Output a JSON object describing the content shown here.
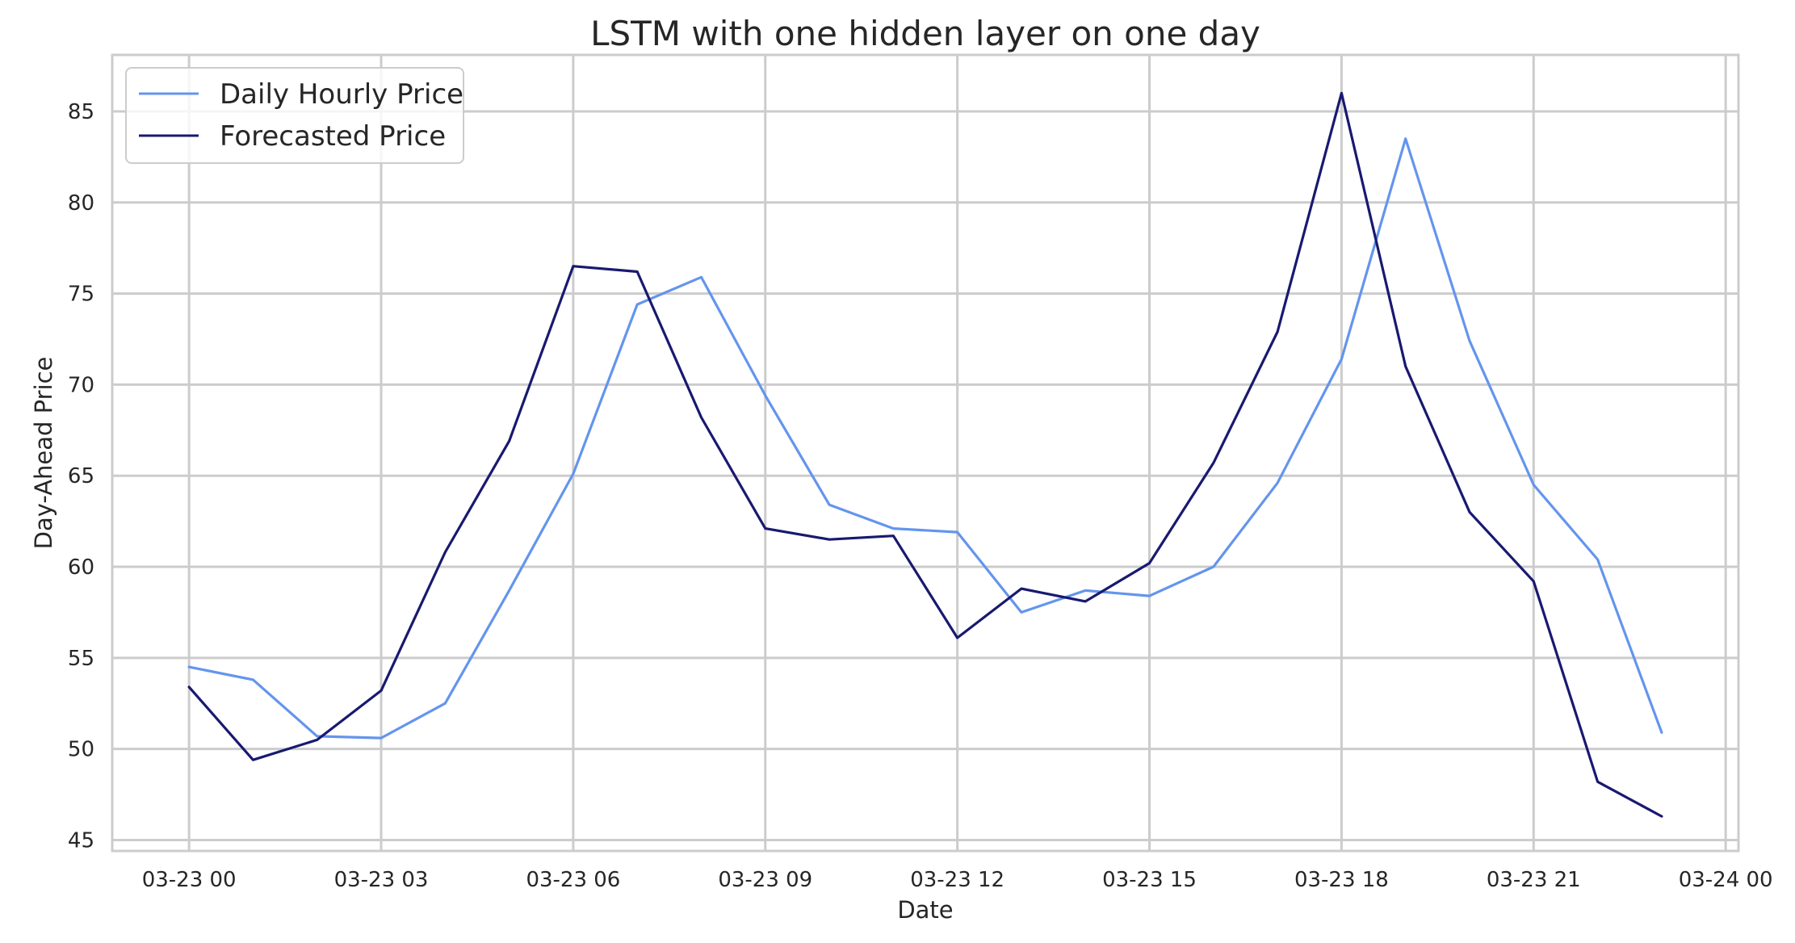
{
  "chart_data": {
    "type": "line",
    "title": "LSTM with one hidden layer on one day",
    "xlabel": "Date",
    "ylabel": "Day-Ahead Price",
    "x": [
      "03-23 00:00",
      "03-23 01:00",
      "03-23 02:00",
      "03-23 03:00",
      "03-23 04:00",
      "03-23 05:00",
      "03-23 06:00",
      "03-23 07:00",
      "03-23 08:00",
      "03-23 09:00",
      "03-23 10:00",
      "03-23 11:00",
      "03-23 12:00",
      "03-23 13:00",
      "03-23 14:00",
      "03-23 15:00",
      "03-23 16:00",
      "03-23 17:00",
      "03-23 18:00",
      "03-23 19:00",
      "03-23 20:00",
      "03-23 21:00",
      "03-23 22:00",
      "03-23 23:00"
    ],
    "xticks": [
      "03-23 00",
      "03-23 03",
      "03-23 06",
      "03-23 09",
      "03-23 12",
      "03-23 15",
      "03-23 18",
      "03-23 21",
      "03-24 00"
    ],
    "yticks": [
      "45",
      "50",
      "55",
      "60",
      "65",
      "70",
      "75",
      "80",
      "85"
    ],
    "xlim": [
      "03-22 22:48",
      "03-24 00:12"
    ],
    "ylim": [
      44.4,
      88.1
    ],
    "grid": true,
    "legend_position": "top-left",
    "series": [
      {
        "name": "Daily Hourly Price",
        "color": "#6495ed",
        "values": [
          54.5,
          53.8,
          50.7,
          50.6,
          52.5,
          58.7,
          65.1,
          74.4,
          75.9,
          69.4,
          63.4,
          62.1,
          61.9,
          57.5,
          58.7,
          58.4,
          60.0,
          64.6,
          71.4,
          83.5,
          72.4,
          64.5,
          60.4,
          50.9
        ]
      },
      {
        "name": "Forecasted Price",
        "color": "#191970",
        "values": [
          53.4,
          49.4,
          50.5,
          53.2,
          60.8,
          66.9,
          76.5,
          76.2,
          68.2,
          62.1,
          61.5,
          61.7,
          56.1,
          58.8,
          58.1,
          60.2,
          65.7,
          72.9,
          86.0,
          71.0,
          63.0,
          59.2,
          48.2,
          46.3
        ]
      }
    ]
  }
}
